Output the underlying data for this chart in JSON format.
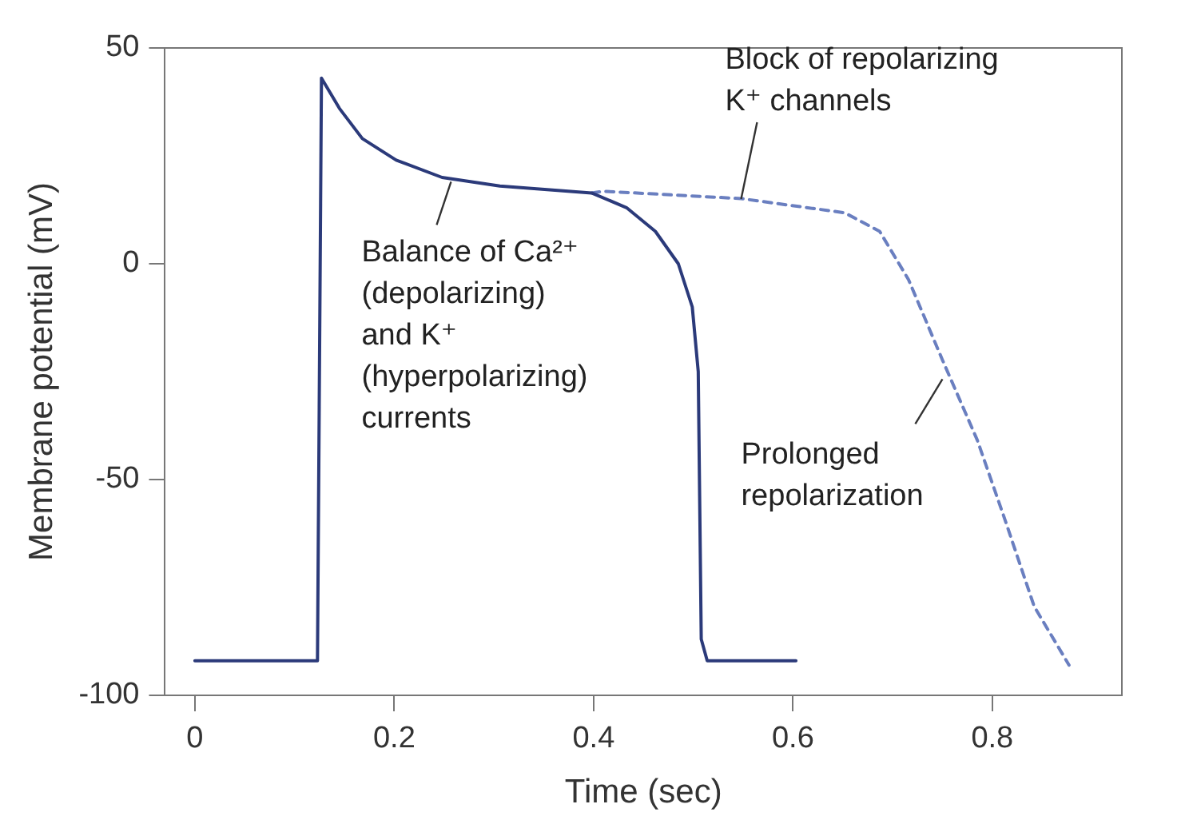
{
  "chart_data": {
    "type": "line",
    "xlabel": "Time (sec)",
    "ylabel": "Membrane potential (mV)",
    "xlim": [
      -0.03,
      0.93
    ],
    "xticks": [
      0,
      0.2,
      0.4,
      0.6,
      0.8
    ],
    "ylim": [
      -100,
      50
    ],
    "yticks": [
      -100,
      -50,
      0,
      50
    ],
    "grid": false,
    "legend": false,
    "marker": "none",
    "series": [
      {
        "color": "#2b3a7a",
        "line_style": "solid",
        "x": [
          0,
          0.123,
          0.127,
          0.145,
          0.168,
          0.202,
          0.248,
          0.306,
          0.364,
          0.398,
          0.433,
          0.462,
          0.485,
          0.499,
          0.505,
          0.508,
          0.514,
          0.603
        ],
        "values": [
          -92,
          -92,
          43,
          36,
          29,
          24,
          20,
          18,
          17,
          16.4,
          13,
          7.5,
          0,
          -10,
          -25,
          -87,
          -92,
          -92
        ]
      },
      {
        "color": "#6a7fc0",
        "line_style": "dashed",
        "x": [
          0.398,
          0.41,
          0.548,
          0.652,
          0.687,
          0.716,
          0.75,
          0.785,
          0.813,
          0.842,
          0.877
        ],
        "values": [
          16.4,
          16.8,
          15.1,
          11.8,
          7.5,
          -3.7,
          -22.3,
          -40.9,
          -59.5,
          -79.4,
          -93
        ]
      }
    ],
    "annotations": [
      {
        "text": "Block of repolarizing\nK⁺ channels",
        "x": 0.548,
        "y": 15
      },
      {
        "text": "Balance of Ca²⁺\n(depolarizing)\nand K⁺\n(hyperpolarizing)\ncurrents",
        "x": 0.257,
        "y": 19
      },
      {
        "text": "Prolonged\nrepolarization",
        "x": 0.75,
        "y": -26
      }
    ]
  }
}
